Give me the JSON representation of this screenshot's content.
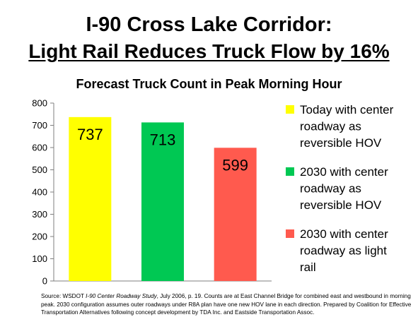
{
  "header": {
    "title_line1": "I-90 Cross Lake Corridor:",
    "title_line2": "Light Rail Reduces Truck Flow by 16%"
  },
  "chart_data": {
    "type": "bar",
    "title": "Forecast Truck Count in Peak Morning Hour",
    "categories": [
      "Today with center roadway as reversible HOV",
      "2030 with center roadway as reversible HOV",
      "2030 with center roadway as light rail"
    ],
    "values": [
      737,
      713,
      599
    ],
    "data_labels": [
      "737",
      "713",
      "599"
    ],
    "colors": [
      "#ffff00",
      "#00c853",
      "#ff5a4e"
    ],
    "ylim": [
      0,
      800
    ],
    "yticks": [
      0,
      100,
      200,
      300,
      400,
      500,
      600,
      700,
      800
    ],
    "ytick_labels": [
      "0",
      "100",
      "200",
      "300",
      "400",
      "500",
      "600",
      "700",
      "800"
    ],
    "grid": false,
    "legend": {
      "position": "right",
      "entries": [
        {
          "label_lines": [
            "Today with center",
            "roadway as",
            "reversible HOV"
          ],
          "color": "#ffff00"
        },
        {
          "label_lines": [
            "2030 with center",
            "roadway as",
            "reversible HOV"
          ],
          "color": "#00c853"
        },
        {
          "label_lines": [
            "2030 with center",
            "roadway as light",
            "rail"
          ],
          "color": "#ff5a4e"
        }
      ]
    }
  },
  "source": {
    "prefix": "Source:  WSDOT ",
    "study_title": "I-90 Center Roadway Study",
    "rest": ", July 2006, p. 19.  Counts are at East Channel Bridge for combined east and westbound in morning peak.  2030 configuration assumes outer roadways under R8A plan have one new HOV lane in each direction.  Prepared by Coalition for Effective Transportation Alternatives following concept development by TDA Inc. and Eastside Transportation Assoc."
  }
}
